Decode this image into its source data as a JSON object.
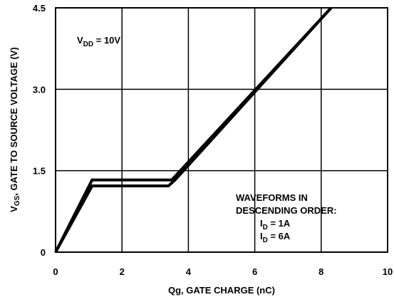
{
  "chart_data": {
    "type": "line",
    "xlabel": "Qg, GATE CHARGE (nC)",
    "ylabel_main": "V",
    "ylabel_sub": "GS",
    "ylabel_rest": ", GATE TO SOURCE VOLTAGE (V)",
    "xlim": [
      0,
      10
    ],
    "ylim": [
      0,
      4.5
    ],
    "x_ticks": [
      0,
      2,
      4,
      6,
      8,
      10
    ],
    "x_tick_labels": [
      "0",
      "2",
      "4",
      "6",
      "8",
      "10"
    ],
    "y_ticks": [
      0,
      1.5,
      3.0,
      4.5
    ],
    "y_tick_labels": [
      "0",
      "1.5",
      "3.0",
      "4.5"
    ],
    "grid": true,
    "series": [
      {
        "name": "I_D = 1A",
        "x": [
          0,
          1.1,
          3.5,
          8.3
        ],
        "y": [
          0,
          1.33,
          1.33,
          4.5
        ]
      },
      {
        "name": "I_D = 6A",
        "x": [
          0,
          1.1,
          3.4,
          3.6,
          8.3
        ],
        "y": [
          0,
          1.22,
          1.22,
          1.33,
          4.5
        ]
      }
    ],
    "annotations": {
      "vdd_main": "V",
      "vdd_sub": "DD",
      "vdd_rest": " = 10V",
      "legend_title_1": "WAVEFORMS IN",
      "legend_title_2": "DESCENDING ORDER:",
      "id1_main": "I",
      "id1_sub": "D",
      "id1_rest": " = 1A",
      "id2_main": "I",
      "id2_sub": "D",
      "id2_rest": " = 6A"
    }
  }
}
